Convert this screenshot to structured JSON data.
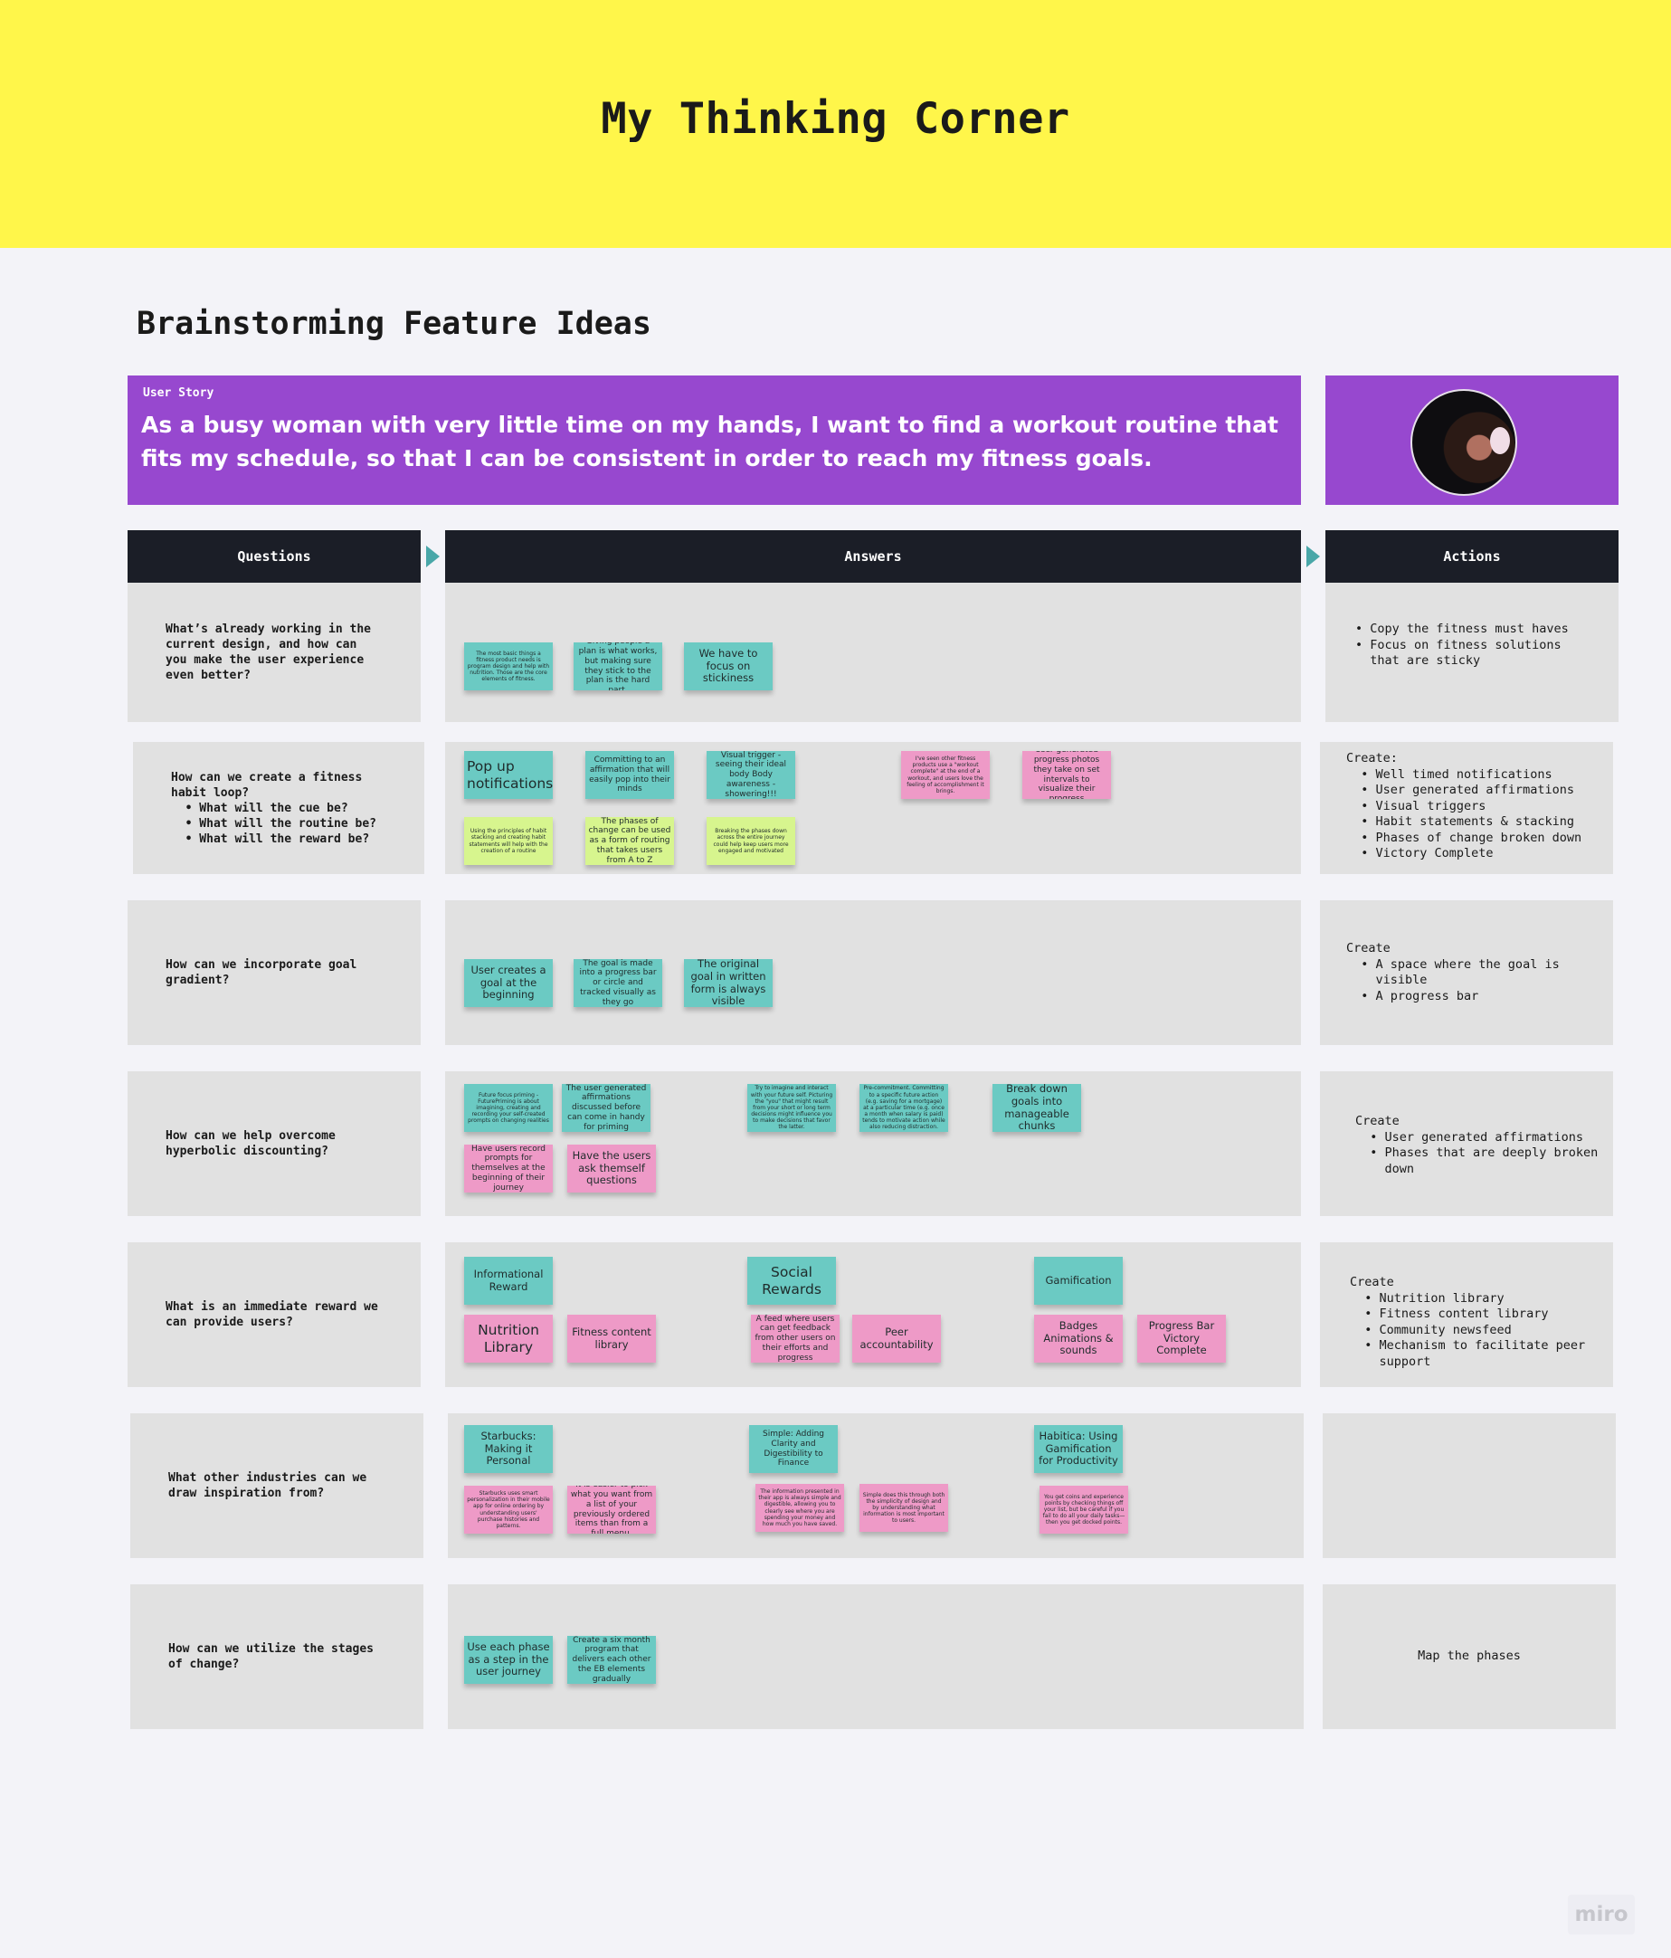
{
  "banner": {
    "title": "My Thinking Corner"
  },
  "section_title": "Brainstorming Feature Ideas",
  "user_story": {
    "label": "User Story",
    "text": "As a busy woman with very little time on my hands, I want to find a workout routine that fits my schedule, so that I can be consistent in order to reach my fitness goals."
  },
  "headers": {
    "questions": "Questions",
    "answers": "Answers",
    "actions": "Actions"
  },
  "colors": {
    "teal": "#6bcac3",
    "pink": "#ee9ac7",
    "lime": "#d7f58e",
    "purple": "#9748cf",
    "yellow": "#fff64a",
    "dark": "#1b1e27"
  },
  "rows": [
    {
      "question": "What’s already working in the\ncurrent design, and how can\nyou make the user experience\neven better?",
      "actions": "• Copy the fitness must haves\n• Focus on fitness solutions\n  that are sticky",
      "notes": [
        {
          "text": "The most basic things a fitness product needs is program design and help with nutrition. Those are the core elements of fitness.",
          "color": "teal",
          "size": "xs"
        },
        {
          "text": "Giving people a plan is what works, but making sure they stick to the plan is the hard part.",
          "color": "teal",
          "size": "s"
        },
        {
          "text": "We have to focus on stickiness",
          "color": "teal",
          "size": "m"
        }
      ]
    },
    {
      "question": "How can we create a fitness\nhabit loop?\n  • What will the cue be?\n  • What will the routine be?\n  • What will the reward be?",
      "actions": "Create:\n  • Well timed notifications\n  • User generated affirmations\n  • Visual triggers\n  • Habit statements & stacking\n  • Phases of change broken down\n  • Victory Complete",
      "notes": [
        {
          "text": "Pop up notifications",
          "color": "teal",
          "size": "l"
        },
        {
          "text": "Committing to an affirmation that will easily pop into their minds",
          "color": "teal",
          "size": "s"
        },
        {
          "text": "Visual trigger - seeing their ideal body Body awareness - showering!!!",
          "color": "teal",
          "size": "s"
        },
        {
          "text": "I've seen other fitness products use a \"workout complete\" at the end of a workout, and users love the feeling of accomplishment it brings.",
          "color": "pink",
          "size": "xs"
        },
        {
          "text": "User generated progress photos they take on set intervals to visualize their progress",
          "color": "pink",
          "size": "s"
        },
        {
          "text": "Using the principles of habit stacking and creating habit statements will help with the creation of a routine",
          "color": "lime",
          "size": "xs"
        },
        {
          "text": "The phases of change can be used as a form of routing that takes users from A to Z",
          "color": "lime",
          "size": "s"
        },
        {
          "text": "Breaking the phases down across the entire journey could help keep users more engaged and motivated",
          "color": "lime",
          "size": "xs"
        }
      ]
    },
    {
      "question": "How can we incorporate goal\ngradient?",
      "actions": "Create\n  • A space where the goal is\n    visible\n  • A progress bar",
      "notes": [
        {
          "text": "User creates a goal at the beginning",
          "color": "teal",
          "size": "m"
        },
        {
          "text": "The goal is made into a progress bar or circle and tracked visually as they go",
          "color": "teal",
          "size": "s"
        },
        {
          "text": "The original goal in written form is always visible",
          "color": "teal",
          "size": "m"
        }
      ]
    },
    {
      "question": "How can we help overcome\nhyperbolic discounting?",
      "actions": "Create\n  • User generated affirmations\n  • Phases that are deeply broken\n    down",
      "notes": [
        {
          "text": "Future focus priming - FuturePriming is about imagining, creating and recording your self-created prompts on changing realities",
          "color": "teal",
          "size": "xs"
        },
        {
          "text": "The user generated affirmations discussed before can come in handy for priming",
          "color": "teal",
          "size": "s"
        },
        {
          "text": "Try to imagine and interact with your future self. Picturing the \"you\" that might result from your short or long term decisions might influence you to make decisions that favor the latter.",
          "color": "teal",
          "size": "xs"
        },
        {
          "text": "Pre-commitment. Committing to a specific future action (e.g. saving for a mortgage) at a particular time (e.g. once a month when salary is paid) tends to motivate action while also reducing distraction.",
          "color": "teal",
          "size": "xs"
        },
        {
          "text": "Break down goals into manageable chunks",
          "color": "teal",
          "size": "m"
        },
        {
          "text": "Have users record prompts for themselves at the beginning of their journey",
          "color": "pink",
          "size": "s"
        },
        {
          "text": "Have the users ask themself questions",
          "color": "pink",
          "size": "m"
        }
      ]
    },
    {
      "question": "What is an immediate reward we\ncan provide users?",
      "actions": "Create\n  • Nutrition library\n  • Fitness content library\n  • Community newsfeed\n  • Mechanism to facilitate peer\n    support",
      "notes": [
        {
          "text": "Informational Reward",
          "color": "teal",
          "size": "m"
        },
        {
          "text": "Social Rewards",
          "color": "teal",
          "size": "l"
        },
        {
          "text": "Gamification",
          "color": "teal",
          "size": "m"
        },
        {
          "text": "Nutrition Library",
          "color": "pink",
          "size": "l"
        },
        {
          "text": "Fitness content library",
          "color": "pink",
          "size": "m"
        },
        {
          "text": "A feed where users can get feedback from other users on their efforts and progress",
          "color": "pink",
          "size": "s"
        },
        {
          "text": "Peer accountability",
          "color": "pink",
          "size": "m"
        },
        {
          "text": "Badges Animations & sounds",
          "color": "pink",
          "size": "m"
        },
        {
          "text": "Progress Bar Victory Complete",
          "color": "pink",
          "size": "m"
        }
      ]
    },
    {
      "question": "What other industries can we\ndraw inspiration from?",
      "actions": "",
      "notes": [
        {
          "text": "Starbucks: Making it Personal",
          "color": "teal",
          "size": "m"
        },
        {
          "text": "Simple: Adding Clarity and Digestibility to Finance",
          "color": "teal",
          "size": "s"
        },
        {
          "text": "Habitica: Using Gamification for Productivity",
          "color": "teal",
          "size": "m"
        },
        {
          "text": "Starbucks uses smart personalization in their mobile app for online ordering by understanding users' purchase histories and patterns.",
          "color": "pink",
          "size": "xs"
        },
        {
          "text": "It is easier to pick what you want from a list of your previously ordered items than from a full menu.",
          "color": "pink",
          "size": "s"
        },
        {
          "text": "The information presented in their app is always simple and digestible, allowing you to clearly see where you are spending your money and how much you have saved.",
          "color": "pink",
          "size": "xs"
        },
        {
          "text": "Simple does this through both the simplicity of design and by understanding what information is most important to users.",
          "color": "pink",
          "size": "xs"
        },
        {
          "text": "You get coins and experience points by checking things off your list, but be careful if you fail to do all your daily tasks—then you get docked points.",
          "color": "pink",
          "size": "xs"
        }
      ]
    },
    {
      "question": "How can we utilize the stages\nof change?",
      "actions": "Map the phases",
      "notes": [
        {
          "text": "Use each phase as a step in the user journey",
          "color": "teal",
          "size": "m"
        },
        {
          "text": "Create a six month program that delivers each other the EB elements gradually",
          "color": "teal",
          "size": "s"
        }
      ]
    }
  ],
  "watermark": "miro"
}
